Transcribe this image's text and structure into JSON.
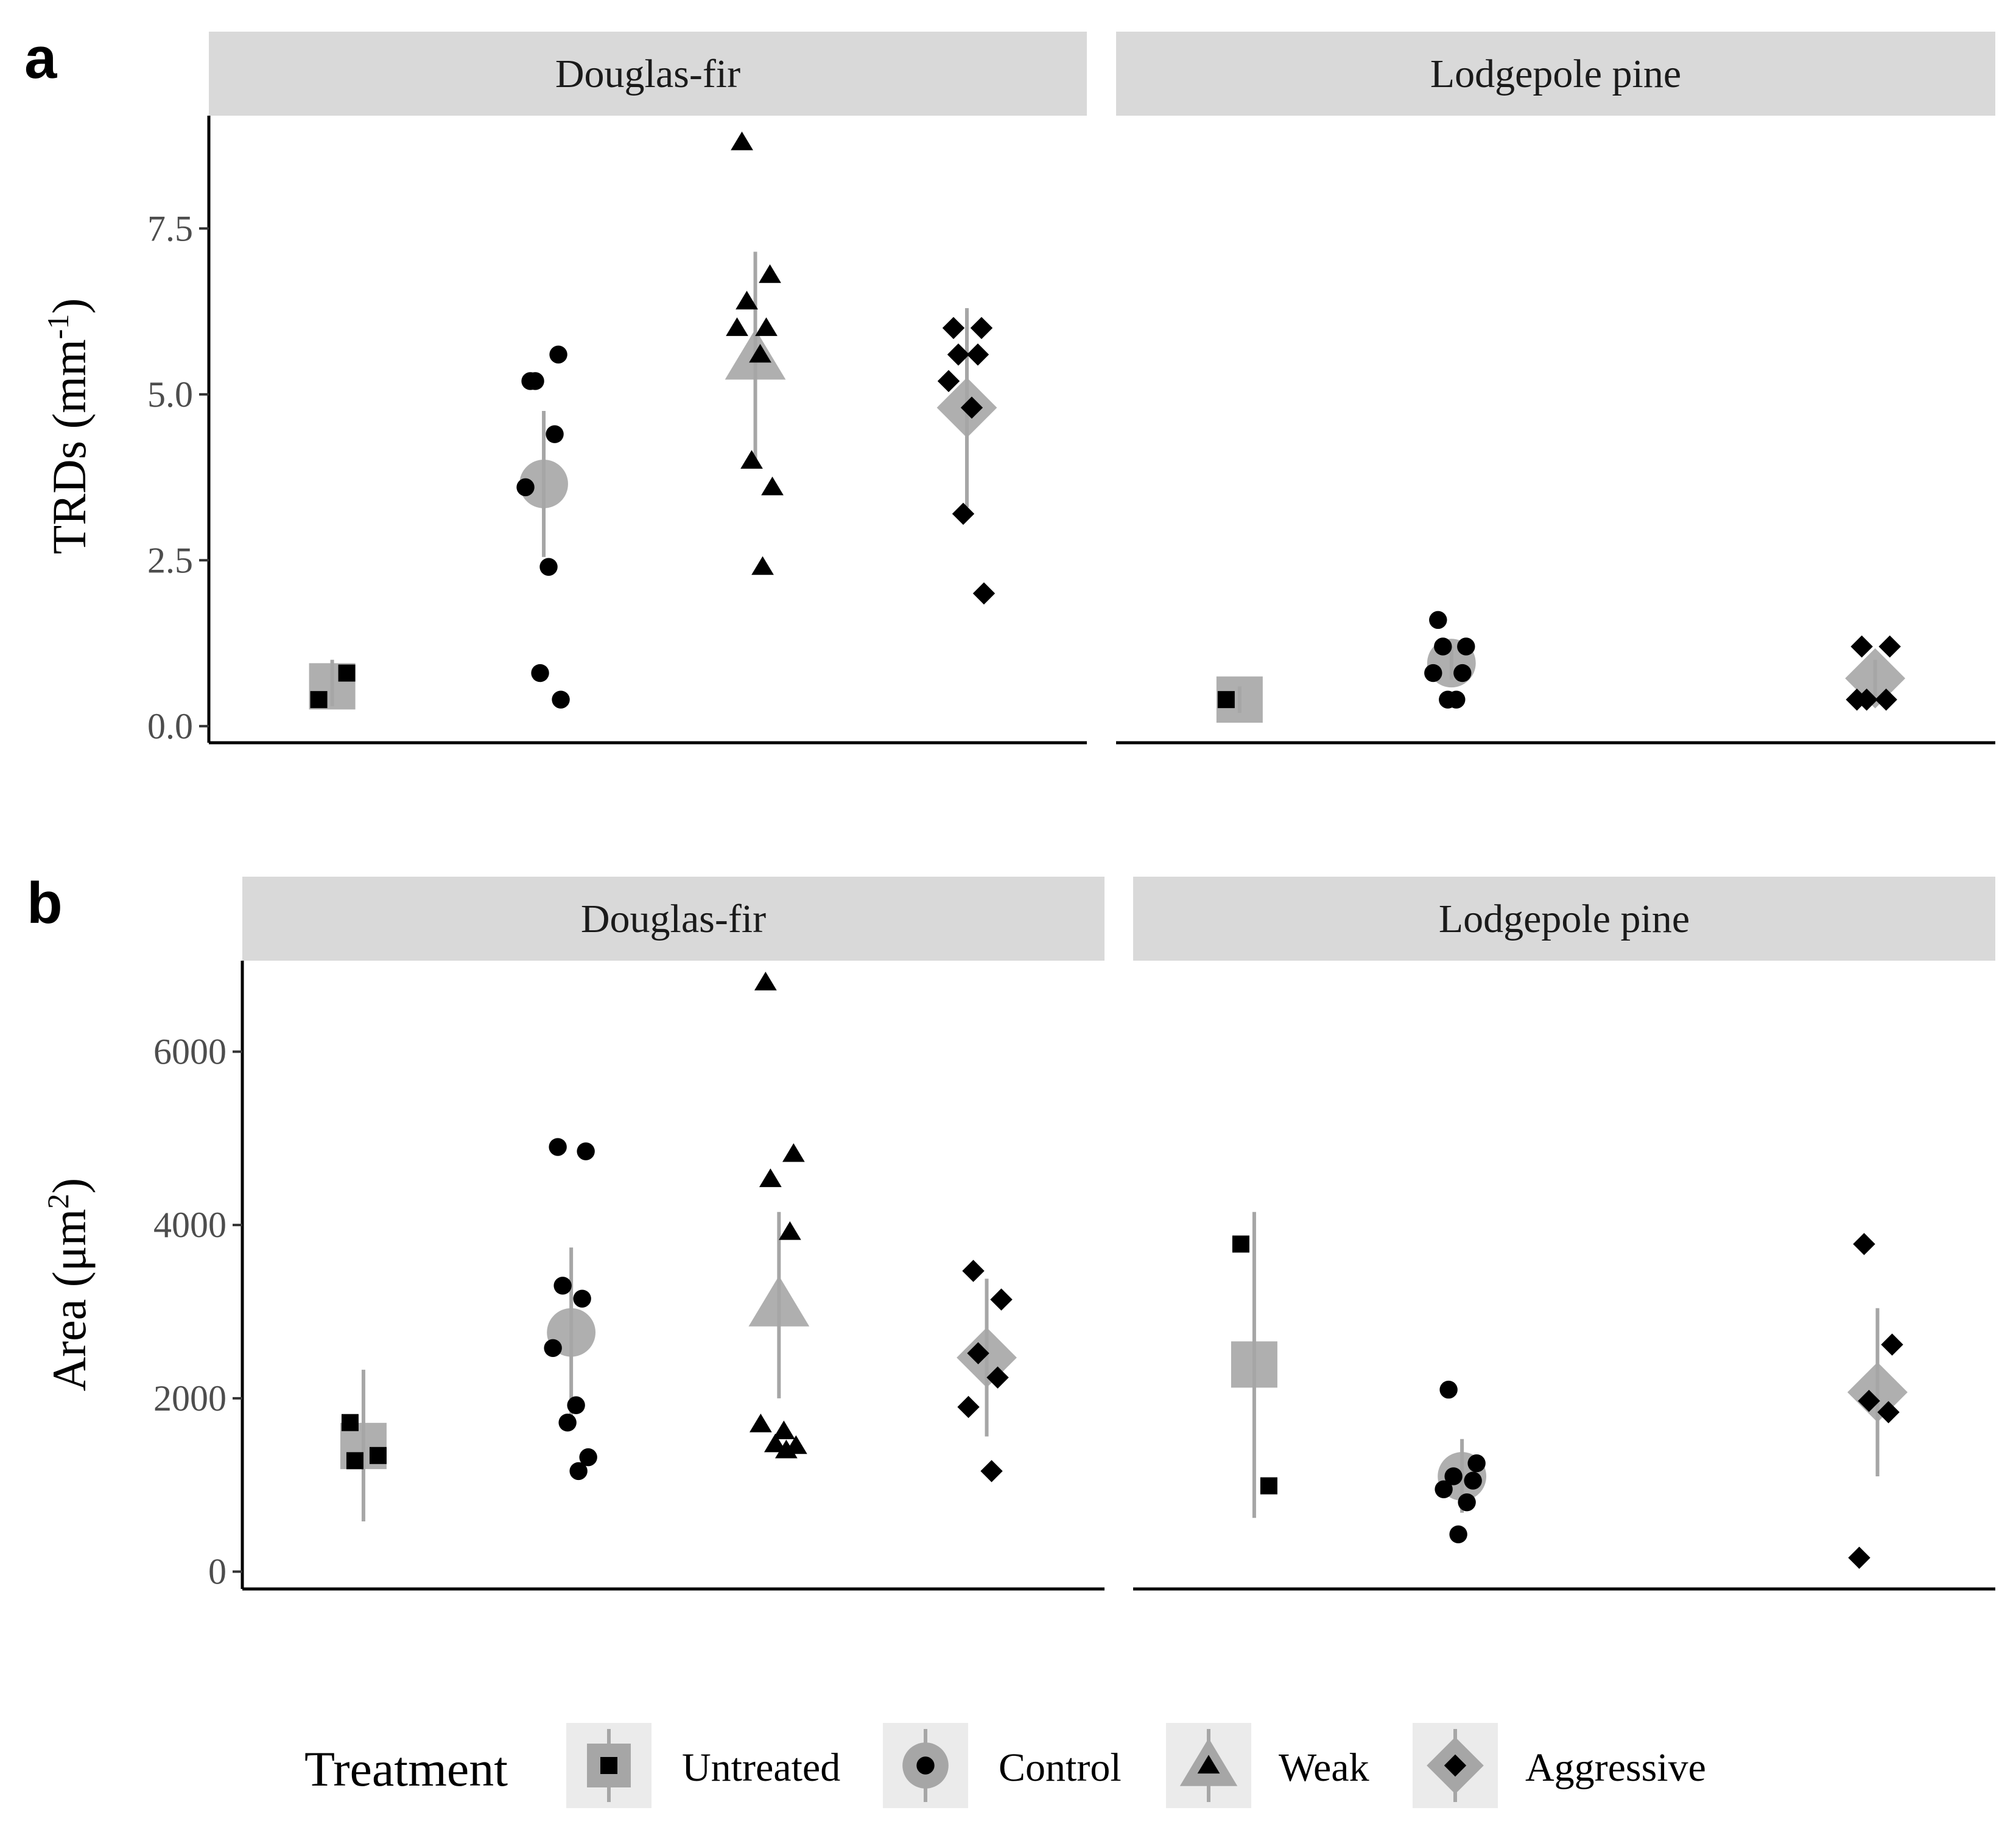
{
  "colors": {
    "strip_fill": "#d9d9d9",
    "summary": "#a6a6a6",
    "point": "#000000",
    "legend_key_bg": "#ebebeb"
  },
  "legend": {
    "title": "Treatment",
    "items": [
      {
        "label": "Untreated",
        "shape": "square"
      },
      {
        "label": "Control",
        "shape": "circle"
      },
      {
        "label": "Weak",
        "shape": "triangle"
      },
      {
        "label": "Aggressive",
        "shape": "diamond"
      }
    ]
  },
  "chart_data": [
    {
      "type": "scatter",
      "panel_label": "a",
      "ylabel": "TRDs (mm",
      "ylabel_sup": "-1",
      "ylabel_suffix": ")",
      "ylim": [
        -0.25,
        9.2
      ],
      "yticks": [
        0,
        2.5,
        5,
        7.5
      ],
      "ytick_labels": [
        "0.0",
        "2.5",
        "5.0",
        "7.5"
      ],
      "categories": [
        "Untreated",
        "Control",
        "Weak",
        "Aggressive"
      ],
      "facets": [
        {
          "name": "Douglas-fir",
          "groups": [
            {
              "treatment": "Untreated",
              "points": [
                0.4,
                0.8
              ],
              "mean": 0.6,
              "lo": 0.3,
              "hi": 1.0
            },
            {
              "treatment": "Control",
              "points": [
                5.2,
                5.6,
                5.2,
                4.4,
                3.6,
                2.4,
                0.8,
                0.4
              ],
              "mean": 3.65,
              "lo": 2.55,
              "hi": 4.75
            },
            {
              "treatment": "Weak",
              "points": [
                8.8,
                6.8,
                6.4,
                6.0,
                6.0,
                5.6,
                4.0,
                3.6,
                2.4
              ],
              "mean": 5.55,
              "lo": 3.9,
              "hi": 7.15
            },
            {
              "treatment": "Aggressive",
              "points": [
                6.0,
                6.0,
                5.6,
                5.6,
                5.2,
                4.8,
                3.2,
                2.0
              ],
              "mean": 4.8,
              "lo": 3.3,
              "hi": 6.3
            }
          ]
        },
        {
          "name": "Lodgepole pine",
          "groups": [
            {
              "treatment": "Untreated",
              "points": [
                0.4
              ],
              "mean": 0.4,
              "lo": 0.2,
              "hi": 0.6
            },
            {
              "treatment": "Control",
              "points": [
                1.6,
                1.2,
                1.2,
                0.8,
                0.8,
                0.4,
                0.4
              ],
              "mean": 0.95,
              "lo": 0.7,
              "hi": 1.2
            },
            {
              "treatment": "Weak",
              "points": [],
              "mean": null,
              "lo": null,
              "hi": null
            },
            {
              "treatment": "Aggressive",
              "points": [
                1.2,
                1.2,
                0.4,
                0.4,
                0.4
              ],
              "mean": 0.72,
              "lo": 0.45,
              "hi": 1.0
            }
          ]
        }
      ]
    },
    {
      "type": "scatter",
      "panel_label": "b",
      "ylabel": "Area (μm",
      "ylabel_sup": "2",
      "ylabel_suffix": ")",
      "ylim": [
        -200,
        7050
      ],
      "yticks": [
        0,
        2000,
        4000,
        6000
      ],
      "ytick_labels": [
        "0",
        "2000",
        "4000",
        "6000"
      ],
      "categories": [
        "Untreated",
        "Control",
        "Weak",
        "Aggressive"
      ],
      "facets": [
        {
          "name": "Douglas-fir",
          "groups": [
            {
              "treatment": "Untreated",
              "points": [
                1720,
                1340,
                1280
              ],
              "mean": 1450,
              "lo": 580,
              "hi": 2330
            },
            {
              "treatment": "Control",
              "points": [
                4900,
                4850,
                3300,
                3150,
                2580,
                1920,
                1720,
                1320,
                1160
              ],
              "mean": 2760,
              "lo": 1780,
              "hi": 3740
            },
            {
              "treatment": "Weak",
              "points": [
                6800,
                4820,
                4530,
                3920,
                1700,
                1620,
                1470,
                1450,
                1400
              ],
              "mean": 3080,
              "lo": 2000,
              "hi": 4150
            },
            {
              "treatment": "Aggressive",
              "points": [
                3470,
                3140,
                2520,
                2240,
                1900,
                1160
              ],
              "mean": 2470,
              "lo": 1560,
              "hi": 3380
            }
          ]
        },
        {
          "name": "Lodgepole pine",
          "groups": [
            {
              "treatment": "Untreated",
              "points": [
                3780,
                990
              ],
              "mean": 2390,
              "lo": 620,
              "hi": 4150
            },
            {
              "treatment": "Control",
              "points": [
                2100,
                1250,
                1100,
                1050,
                950,
                800,
                430
              ],
              "mean": 1100,
              "lo": 680,
              "hi": 1530
            },
            {
              "treatment": "Weak",
              "points": [],
              "mean": null,
              "lo": null,
              "hi": null
            },
            {
              "treatment": "Aggressive",
              "points": [
                3780,
                2620,
                1970,
                1840,
                160
              ],
              "mean": 2070,
              "lo": 1100,
              "hi": 3040
            }
          ]
        }
      ]
    }
  ]
}
